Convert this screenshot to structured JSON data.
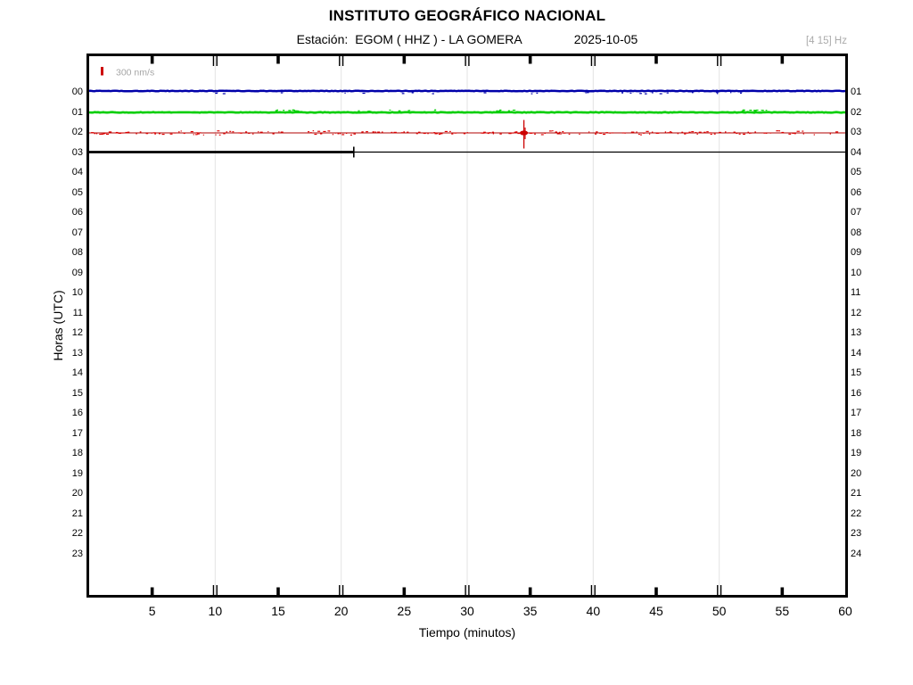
{
  "header": {
    "title": "INSTITUTO GEOGRÁFICO NACIONAL",
    "station_label": "Estación:",
    "station_value": "EGOM ( HHZ ) - LA GOMERA",
    "date": "2025-10-05",
    "filter": "[4 15] Hz"
  },
  "chart_data": {
    "type": "line",
    "variant": "helicorder-daily-seismogram",
    "title": "INSTITUTO GEOGRÁFICO NACIONAL",
    "station": "EGOM",
    "channel": "HHZ",
    "region": "LA GOMERA",
    "date": "2025-10-05",
    "filter_band_hz": [
      4,
      15
    ],
    "filter_label": "[4 15] Hz",
    "scale_label": "300 nm/s",
    "xlabel": "Tiempo (minutos)",
    "ylabel": "Horas (UTC)",
    "xlim": [
      0,
      60
    ],
    "x_ticks": [
      5,
      10,
      15,
      20,
      25,
      30,
      35,
      40,
      45,
      50,
      55,
      60
    ],
    "gridline_minutes": [
      10,
      20,
      30,
      40,
      50
    ],
    "grid": "vertical-only",
    "left_hour_labels": [
      "00",
      "01",
      "02",
      "03",
      "04",
      "05",
      "06",
      "07",
      "08",
      "09",
      "10",
      "11",
      "12",
      "13",
      "14",
      "15",
      "16",
      "17",
      "18",
      "19",
      "20",
      "21",
      "22",
      "23"
    ],
    "right_hour_labels": [
      "01",
      "02",
      "03",
      "04",
      "05",
      "06",
      "07",
      "08",
      "09",
      "10",
      "11",
      "12",
      "13",
      "14",
      "15",
      "16",
      "17",
      "18",
      "19",
      "20",
      "21",
      "22",
      "23",
      "24"
    ],
    "traces": [
      {
        "hour_utc": "00",
        "row": 0,
        "color": "#0000AA",
        "start_min": 0,
        "end_min": 60,
        "description": "quiet flat trace with sparse tiny downward blips",
        "events": []
      },
      {
        "hour_utc": "01",
        "row": 1,
        "color": "#00CE00",
        "start_min": 0,
        "end_min": 60,
        "description": "quiet flat trace with sparse tiny upward blips",
        "events": []
      },
      {
        "hour_utc": "02",
        "row": 2,
        "color": "#CC0000",
        "start_min": 0,
        "end_min": 60,
        "description": "continuous low-amplitude noise fuzz along whole hour",
        "events": [
          {
            "time_min": 34.5,
            "type": "spike",
            "relative_size": "large"
          }
        ]
      },
      {
        "hour_utc": "03",
        "row": 3,
        "color": "#000000",
        "start_min": 0,
        "end_min": 21,
        "description": "flat trace recorded up to ~21 min (recording in progress); thin baseline continues to 60 min with end tick at 21 min",
        "events": []
      }
    ],
    "colors": {
      "grid": "#E3E3E3",
      "axis": "#000000",
      "muted_text": "#A6A6A6",
      "scale_bar": "#CC0000"
    }
  }
}
